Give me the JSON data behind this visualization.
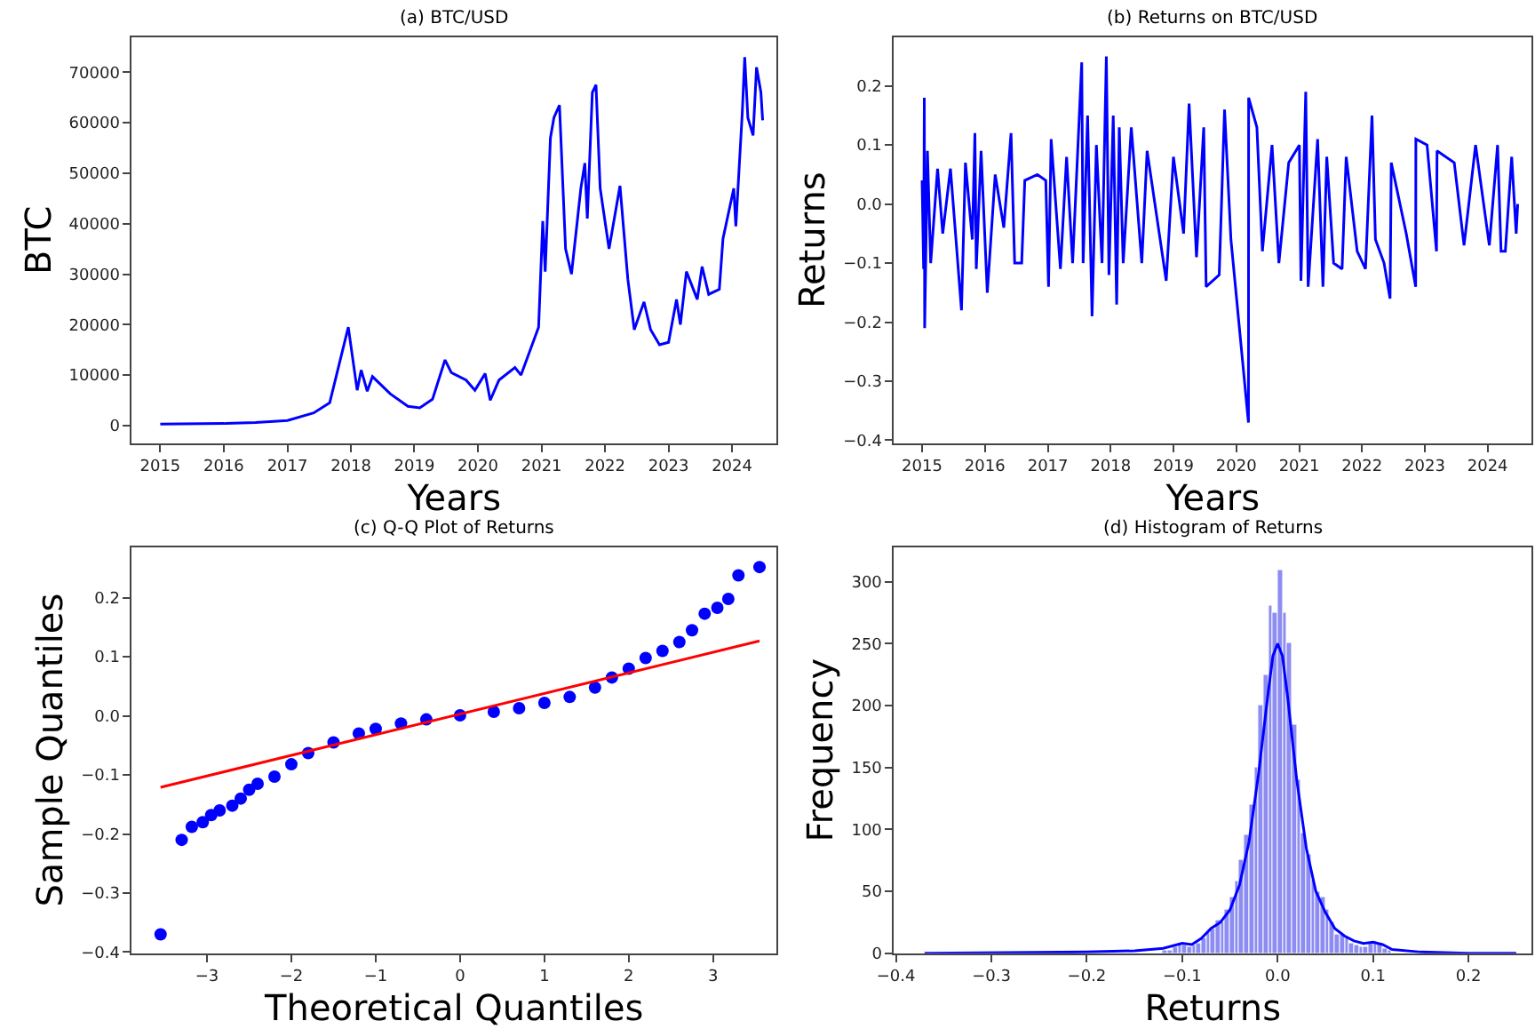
{
  "chart_data": [
    {
      "type": "line",
      "title": "(a) BTC/USD",
      "xlabel": "Years",
      "ylabel": "BTC",
      "xlim": [
        "2014-07-22",
        "2024-09-12"
      ],
      "xticks": [
        "2015",
        "2016",
        "2017",
        "2018",
        "2019",
        "2020",
        "2021",
        "2022",
        "2023",
        "2024"
      ],
      "ylim": [
        -3500,
        77000
      ],
      "yticks": [
        0,
        10000,
        20000,
        30000,
        40000,
        50000,
        60000,
        70000
      ],
      "x": [
        "2015-01-01",
        "2016-01-01",
        "2016-07-01",
        "2017-01-01",
        "2017-06-01",
        "2017-09-01",
        "2017-12-17",
        "2018-02-06",
        "2018-03-01",
        "2018-04-05",
        "2018-05-05",
        "2018-08-15",
        "2018-11-25",
        "2019-02-01",
        "2019-04-15",
        "2019-06-26",
        "2019-08-01",
        "2019-10-25",
        "2019-12-15",
        "2020-02-12",
        "2020-03-12",
        "2020-05-01",
        "2020-08-01",
        "2020-09-05",
        "2020-12-15",
        "2021-01-08",
        "2021-01-22",
        "2021-02-21",
        "2021-03-13",
        "2021-04-14",
        "2021-05-19",
        "2021-06-22",
        "2021-08-15",
        "2021-09-07",
        "2021-09-21",
        "2021-10-20",
        "2021-11-10",
        "2021-12-04",
        "2022-01-24",
        "2022-03-28",
        "2022-05-12",
        "2022-06-18",
        "2022-08-13",
        "2022-09-20",
        "2022-11-10",
        "2023-01-01",
        "2023-02-16",
        "2023-03-10",
        "2023-04-14",
        "2023-06-15",
        "2023-07-13",
        "2023-08-20",
        "2023-10-20",
        "2023-11-10",
        "2024-01-11",
        "2024-01-23",
        "2024-02-29",
        "2024-03-14",
        "2024-04-01",
        "2024-05-01",
        "2024-05-21",
        "2024-06-15",
        "2024-06-25"
      ],
      "series": [
        {
          "color": "#0000ff",
          "values": [
            300,
            400,
            600,
            1000,
            2500,
            4500,
            19500,
            7000,
            11000,
            6800,
            9700,
            6300,
            3800,
            3500,
            5200,
            13000,
            10500,
            9000,
            7000,
            10300,
            5000,
            9000,
            11500,
            10000,
            19500,
            40500,
            30500,
            57000,
            61000,
            63500,
            35000,
            30000,
            47000,
            52000,
            41000,
            66000,
            67500,
            47000,
            35000,
            47500,
            29000,
            19000,
            24500,
            19000,
            16000,
            16500,
            25000,
            20000,
            30500,
            25000,
            31500,
            26000,
            27000,
            37000,
            47000,
            39500,
            62000,
            73000,
            61000,
            57500,
            71000,
            66000,
            60500
          ]
        }
      ]
    },
    {
      "type": "line",
      "title": "(b) Returns on BTC/USD",
      "xlabel": "Years",
      "ylabel": "Returns",
      "xlim": [
        "2014-07-22",
        "2024-09-12"
      ],
      "xticks": [
        "2015",
        "2016",
        "2017",
        "2018",
        "2019",
        "2020",
        "2021",
        "2022",
        "2023",
        "2024"
      ],
      "ylim": [
        -0.405,
        0.283
      ],
      "yticks": [
        {
          "value": -0.4,
          "label": "−0.4"
        },
        {
          "value": -0.3,
          "label": "−0.3"
        },
        {
          "value": -0.2,
          "label": "−0.2"
        },
        {
          "value": -0.1,
          "label": "−0.1"
        },
        {
          "value": 0,
          "label": "0.0"
        },
        0.1,
        0.2
      ],
      "x": [
        "2015-01-01",
        "2015-01-10",
        "2015-01-14",
        "2015-01-16",
        "2015-02-01",
        "2015-02-20",
        "2015-04-01",
        "2015-05-01",
        "2015-06-15",
        "2015-08-18",
        "2015-09-10",
        "2015-10-20",
        "2015-11-04",
        "2015-11-12",
        "2015-12-10",
        "2016-01-15",
        "2016-03-01",
        "2016-04-20",
        "2016-06-01",
        "2016-06-22",
        "2016-08-02",
        "2016-08-20",
        "2016-11-01",
        "2016-12-20",
        "2017-01-05",
        "2017-01-20",
        "2017-03-15",
        "2017-04-20",
        "2017-05-25",
        "2017-07-17",
        "2017-07-25",
        "2017-08-20",
        "2017-09-15",
        "2017-10-10",
        "2017-11-12",
        "2017-12-07",
        "2017-12-22",
        "2018-01-16",
        "2018-02-05",
        "2018-02-20",
        "2018-03-15",
        "2018-05-01",
        "2018-07-01",
        "2018-08-01",
        "2018-11-20",
        "2019-01-01",
        "2019-03-01",
        "2019-04-02",
        "2019-05-15",
        "2019-06-26",
        "2019-07-10",
        "2019-09-24",
        "2019-10-25",
        "2019-12-01",
        "2020-03-12",
        "2020-03-13",
        "2020-04-30",
        "2020-06-01",
        "2020-07-27",
        "2020-09-05",
        "2020-11-01",
        "2021-01-02",
        "2021-01-11",
        "2021-02-08",
        "2021-02-22",
        "2021-04-18",
        "2021-05-19",
        "2021-06-10",
        "2021-07-20",
        "2021-09-07",
        "2021-10-01",
        "2021-12-04",
        "2022-01-21",
        "2022-02-28",
        "2022-03-20",
        "2022-05-09",
        "2022-06-13",
        "2022-06-20",
        "2022-09-15",
        "2022-11-09",
        "2022-11-10",
        "2023-01-14",
        "2023-03-10",
        "2023-03-13",
        "2023-06-21",
        "2023-08-17",
        "2023-10-23",
        "2024-01-11",
        "2024-02-28",
        "2024-03-19",
        "2024-04-13",
        "2024-05-20",
        "2024-06-15",
        "2024-06-24"
      ],
      "series": [
        {
          "color": "#0000ff",
          "values": [
            0.04,
            -0.11,
            0.18,
            -0.21,
            0.09,
            -0.1,
            0.06,
            -0.05,
            0.06,
            -0.18,
            0.07,
            -0.06,
            0.12,
            -0.11,
            0.09,
            -0.15,
            0.05,
            -0.04,
            0.12,
            -0.1,
            -0.1,
            0.04,
            0.05,
            0.04,
            -0.14,
            0.11,
            -0.11,
            0.08,
            -0.1,
            0.24,
            -0.1,
            0.15,
            -0.19,
            0.1,
            -0.1,
            0.25,
            -0.12,
            0.15,
            -0.17,
            0.13,
            -0.1,
            0.13,
            -0.1,
            0.09,
            -0.13,
            0.08,
            -0.05,
            0.17,
            -0.09,
            0.13,
            -0.14,
            -0.12,
            0.16,
            -0.06,
            -0.37,
            0.18,
            0.13,
            -0.08,
            0.1,
            -0.1,
            0.07,
            0.1,
            -0.13,
            0.19,
            -0.14,
            0.11,
            -0.14,
            0.08,
            -0.1,
            -0.11,
            0.08,
            -0.08,
            -0.11,
            0.15,
            -0.06,
            -0.1,
            -0.16,
            0.07,
            -0.05,
            -0.14,
            0.11,
            0.1,
            -0.08,
            0.09,
            0.07,
            -0.07,
            0.1,
            -0.07,
            0.1,
            -0.08,
            -0.08,
            0.08,
            -0.05,
            0.0
          ]
        }
      ]
    },
    {
      "type": "scatter",
      "title": "(c) Q-Q Plot of Returns",
      "xlabel": "Theoretical Quantiles",
      "ylabel": "Sample Quantiles",
      "xlim": [
        -3.89,
        3.75
      ],
      "xticks": [
        {
          "value": -3,
          "label": "−3"
        },
        {
          "value": -2,
          "label": "−2"
        },
        {
          "value": -1,
          "label": "−1"
        },
        0,
        1,
        2,
        3
      ],
      "ylim": [
        -0.402,
        0.286
      ],
      "yticks": [
        {
          "value": -0.4,
          "label": "−0.4"
        },
        {
          "value": -0.3,
          "label": "−0.3"
        },
        {
          "value": -0.2,
          "label": "−0.2"
        },
        {
          "value": -0.1,
          "label": "−0.1"
        },
        {
          "value": 0,
          "label": "0.0"
        },
        0.1,
        0.2
      ],
      "series": [
        {
          "type": "scatter",
          "marker": "circle",
          "color": "#0000ff",
          "x": [
            -3.55,
            -3.3,
            -3.18,
            -3.05,
            -2.95,
            -2.85,
            -2.7,
            -2.6,
            -2.5,
            -2.4,
            -2.2,
            -2.0,
            -1.8,
            -1.5,
            -1.2,
            -1.0,
            -0.7,
            -0.4,
            0,
            0.4,
            0.7,
            1.0,
            1.3,
            1.6,
            1.8,
            2.0,
            2.2,
            2.4,
            2.6,
            2.75,
            2.9,
            3.05,
            3.18,
            3.3,
            3.55
          ],
          "values": [
            -0.37,
            -0.21,
            -0.188,
            -0.18,
            -0.168,
            -0.16,
            -0.152,
            -0.14,
            -0.125,
            -0.115,
            -0.103,
            -0.082,
            -0.063,
            -0.045,
            -0.03,
            -0.022,
            -0.013,
            -0.006,
            0.001,
            0.007,
            0.013,
            0.022,
            0.032,
            0.048,
            0.065,
            0.08,
            0.098,
            0.11,
            0.125,
            0.145,
            0.173,
            0.183,
            0.198,
            0.238,
            0.252
          ]
        },
        {
          "type": "line",
          "color": "#ff0000",
          "x": [
            -3.55,
            3.55
          ],
          "values": [
            -0.121,
            0.127
          ]
        }
      ]
    },
    {
      "type": "histogram",
      "title": "(d) Histogram of Returns",
      "xlabel": "Returns",
      "ylabel": "Frequency",
      "xlim": [
        -0.402,
        0.266
      ],
      "xticks": [
        {
          "value": -0.4,
          "label": "−0.4"
        },
        {
          "value": -0.3,
          "label": "−0.3"
        },
        {
          "value": -0.2,
          "label": "−0.2"
        },
        {
          "value": -0.1,
          "label": "−0.1"
        },
        {
          "value": 0,
          "label": "0.0"
        },
        0.1,
        0.2
      ],
      "ylim": [
        0,
        328
      ],
      "yticks": [
        0,
        50,
        100,
        150,
        200,
        250,
        300
      ],
      "bins": [
        -0.12,
        -0.115,
        -0.11,
        -0.105,
        -0.1,
        -0.095,
        -0.09,
        -0.085,
        -0.08,
        -0.075,
        -0.07,
        -0.065,
        -0.06,
        -0.055,
        -0.05,
        -0.045,
        -0.04,
        -0.035,
        -0.03,
        -0.025,
        -0.02,
        -0.015,
        -0.01,
        -0.005,
        0,
        0.005,
        0.01,
        0.015,
        0.02,
        0.025,
        0.03,
        0.035,
        0.04,
        0.045,
        0.05,
        0.055,
        0.06,
        0.065,
        0.07,
        0.075,
        0.08,
        0.085,
        0.09,
        0.095,
        0.1,
        0.105,
        0.11,
        0.115,
        0.12
      ],
      "values": [
        2,
        3,
        5,
        8,
        7,
        5,
        6,
        8,
        12,
        16,
        20,
        27,
        25,
        35,
        45,
        58,
        75,
        95,
        120,
        150,
        200,
        225,
        280,
        275,
        310,
        275,
        250,
        185,
        140,
        97,
        80,
        60,
        50,
        45,
        35,
        25,
        15,
        15,
        12,
        8,
        6,
        5,
        5,
        8,
        10,
        8,
        4,
        2
      ],
      "color": "#6666ee",
      "series": [
        {
          "type": "line",
          "color": "#0000ff",
          "x": [
            -0.37,
            -0.2,
            -0.15,
            -0.12,
            -0.1,
            -0.09,
            -0.08,
            -0.07,
            -0.06,
            -0.05,
            -0.04,
            -0.03,
            -0.02,
            -0.01,
            -0.005,
            0,
            0.005,
            0.01,
            0.02,
            0.03,
            0.04,
            0.05,
            0.06,
            0.07,
            0.08,
            0.09,
            0.1,
            0.11,
            0.12,
            0.15,
            0.2,
            0.25
          ],
          "values": [
            0,
            1,
            2,
            4,
            8,
            7,
            12,
            20,
            25,
            35,
            55,
            90,
            145,
            210,
            240,
            250,
            240,
            210,
            140,
            85,
            50,
            33,
            20,
            14,
            10,
            8,
            9,
            7,
            3,
            1,
            0,
            0
          ]
        }
      ]
    }
  ]
}
